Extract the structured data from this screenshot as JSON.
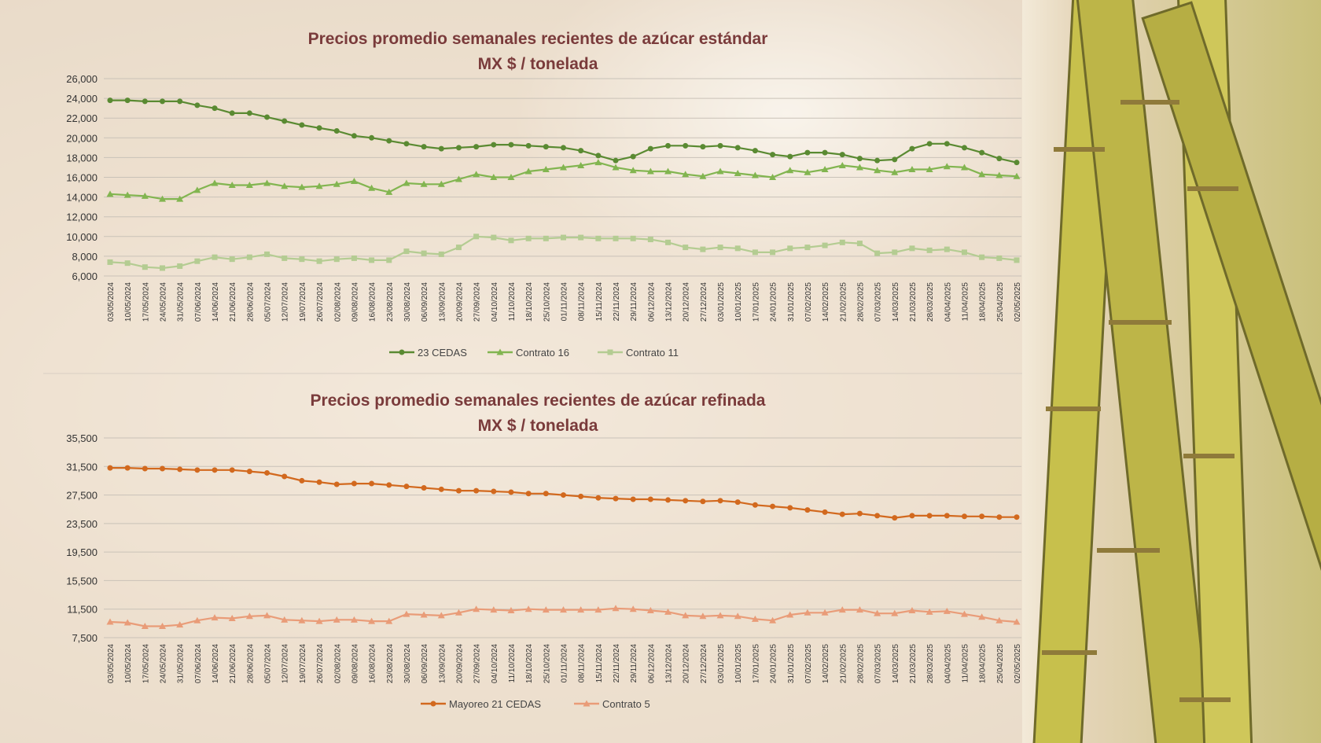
{
  "colors": {
    "cedas": "#5a8a32",
    "contrato16": "#82b550",
    "contrato11": "#b4cc92",
    "mayoreo": "#d2691e",
    "contrato5": "#e99c78",
    "title": "#7a3b3b"
  },
  "chart_data": [
    {
      "type": "line",
      "title": "Precios promedio semanales recientes de azúcar estándar",
      "subtitle": "MX $ / tonelada",
      "ylim": [
        6000,
        26000
      ],
      "yticks": [
        "26,000",
        "24,000",
        "22,000",
        "20,000",
        "18,000",
        "16,000",
        "14,000",
        "12,000",
        "10,000",
        "8,000",
        "6,000"
      ],
      "ytick_values": [
        26000,
        24000,
        22000,
        20000,
        18000,
        16000,
        14000,
        12000,
        10000,
        8000,
        6000
      ],
      "x_labels": [
        "03/05/2024",
        "10/05/2024",
        "17/05/2024",
        "24/05/2024",
        "31/05/2024",
        "07/06/2024",
        "14/06/2024",
        "21/06/2024",
        "28/06/2024",
        "05/07/2024",
        "12/07/2024",
        "19/07/2024",
        "26/07/2024",
        "02/08/2024",
        "09/08/2024",
        "16/08/2024",
        "23/08/2024",
        "30/08/2024",
        "06/09/2024",
        "13/09/2024",
        "20/09/2024",
        "27/09/2024",
        "04/10/2024",
        "11/10/2024",
        "18/10/2024",
        "25/10/2024",
        "01/11/2024",
        "08/11/2024",
        "15/11/2024",
        "22/11/2024",
        "29/11/2024",
        "06/12/2024",
        "13/12/2024",
        "20/12/2024",
        "27/12/2024",
        "03/01/2025",
        "10/01/2025",
        "17/01/2025",
        "24/01/2025",
        "31/01/2025",
        "07/02/2025",
        "14/02/2025",
        "21/02/2025",
        "28/02/2025",
        "07/03/2025",
        "14/03/2025",
        "21/03/2025",
        "28/03/2025",
        "04/04/2025",
        "11/04/2025",
        "18/04/2025",
        "25/04/2025",
        "02/05/2025"
      ],
      "legend_position": "bottom",
      "grid": true,
      "series": [
        {
          "name": "23 CEDAS",
          "color_key": "cedas",
          "marker": "circle",
          "values": [
            23800,
            23800,
            23700,
            23700,
            23700,
            23300,
            23000,
            22500,
            22500,
            22100,
            21700,
            21300,
            21000,
            20700,
            20200,
            20000,
            19700,
            19400,
            19100,
            18900,
            19000,
            19100,
            19300,
            19300,
            19200,
            19100,
            19000,
            18700,
            18200,
            17700,
            18100,
            18900,
            19200,
            19200,
            19100,
            19200,
            19000,
            18700,
            18300,
            18100,
            18500,
            18500,
            18300,
            17900,
            17700,
            17800,
            18900,
            19400,
            19400,
            19000,
            18500,
            17900,
            17500
          ]
        },
        {
          "name": "Contrato 16",
          "color_key": "contrato16",
          "marker": "triangle",
          "values": [
            14300,
            14200,
            14100,
            13800,
            13800,
            14700,
            15400,
            15200,
            15200,
            15400,
            15100,
            15000,
            15100,
            15300,
            15600,
            14900,
            14500,
            15400,
            15300,
            15300,
            15800,
            16300,
            16000,
            16000,
            16600,
            16800,
            17000,
            17200,
            17500,
            17000,
            16700,
            16600,
            16600,
            16300,
            16100,
            16600,
            16400,
            16200,
            16000,
            16700,
            16500,
            16800,
            17200,
            17000,
            16700,
            16500,
            16800,
            16800,
            17100,
            17000,
            16300,
            16200,
            16100
          ]
        },
        {
          "name": "Contrato 11",
          "color_key": "contrato11",
          "marker": "square",
          "values": [
            7400,
            7300,
            6900,
            6800,
            7000,
            7500,
            7900,
            7700,
            7900,
            8200,
            7800,
            7700,
            7500,
            7700,
            7800,
            7600,
            7600,
            8500,
            8300,
            8200,
            8900,
            10000,
            9900,
            9600,
            9800,
            9800,
            9900,
            9900,
            9800,
            9800,
            9800,
            9700,
            9400,
            8900,
            8700,
            8900,
            8800,
            8400,
            8400,
            8800,
            8900,
            9100,
            9400,
            9300,
            8300,
            8400,
            8800,
            8600,
            8700,
            8400,
            7900,
            7800,
            7600
          ]
        }
      ]
    },
    {
      "type": "line",
      "title": "Precios promedio semanales recientes de azúcar refinada",
      "subtitle": "MX $ / tonelada",
      "ylim": [
        7500,
        35500
      ],
      "yticks": [
        "35,500",
        "31,500",
        "27,500",
        "23,500",
        "19,500",
        "15,500",
        "11,500",
        "7,500"
      ],
      "ytick_values": [
        35500,
        31500,
        27500,
        23500,
        19500,
        15500,
        11500,
        7500
      ],
      "x_labels": [
        "03/05/2024",
        "10/05/2024",
        "17/05/2024",
        "24/05/2024",
        "31/05/2024",
        "07/06/2024",
        "14/06/2024",
        "21/06/2024",
        "28/06/2024",
        "05/07/2024",
        "12/07/2024",
        "19/07/2024",
        "26/07/2024",
        "02/08/2024",
        "09/08/2024",
        "16/08/2024",
        "23/08/2024",
        "30/08/2024",
        "06/09/2024",
        "13/09/2024",
        "20/09/2024",
        "27/09/2024",
        "04/10/2024",
        "11/10/2024",
        "18/10/2024",
        "25/10/2024",
        "01/11/2024",
        "08/11/2024",
        "15/11/2024",
        "22/11/2024",
        "29/11/2024",
        "06/12/2024",
        "13/12/2024",
        "20/12/2024",
        "27/12/2024",
        "03/01/2025",
        "10/01/2025",
        "17/01/2025",
        "24/01/2025",
        "31/01/2025",
        "07/02/2025",
        "14/02/2025",
        "21/02/2025",
        "28/02/2025",
        "07/03/2025",
        "14/03/2025",
        "21/03/2025",
        "28/03/2025",
        "04/04/2025",
        "11/04/2025",
        "18/04/2025",
        "25/04/2025",
        "02/05/2025"
      ],
      "legend_position": "bottom",
      "grid": true,
      "series": [
        {
          "name": "Mayoreo 21 CEDAS",
          "color_key": "mayoreo",
          "marker": "circle",
          "values": [
            31300,
            31300,
            31200,
            31200,
            31100,
            31000,
            31000,
            31000,
            30800,
            30600,
            30100,
            29500,
            29300,
            29000,
            29100,
            29100,
            28900,
            28700,
            28500,
            28300,
            28100,
            28100,
            28000,
            27900,
            27700,
            27700,
            27500,
            27300,
            27100,
            27000,
            26900,
            26900,
            26800,
            26700,
            26600,
            26700,
            26500,
            26100,
            25900,
            25700,
            25400,
            25100,
            24800,
            24900,
            24600,
            24300,
            24600,
            24600,
            24600,
            24500,
            24500,
            24400,
            24400
          ]
        },
        {
          "name": "Contrato 5",
          "color_key": "contrato5",
          "marker": "triangle",
          "values": [
            9700,
            9600,
            9100,
            9100,
            9300,
            9900,
            10300,
            10200,
            10500,
            10600,
            10000,
            9900,
            9800,
            10000,
            10000,
            9800,
            9800,
            10800,
            10700,
            10600,
            11000,
            11500,
            11400,
            11300,
            11500,
            11400,
            11400,
            11400,
            11400,
            11600,
            11500,
            11300,
            11100,
            10600,
            10500,
            10600,
            10500,
            10100,
            9900,
            10700,
            11000,
            11000,
            11400,
            11400,
            10900,
            10900,
            11300,
            11100,
            11200,
            10800,
            10400,
            9900,
            9700
          ]
        }
      ]
    }
  ]
}
